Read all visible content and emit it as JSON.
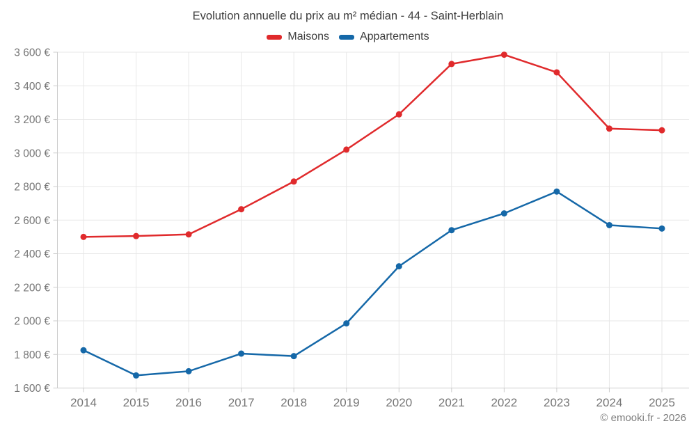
{
  "chart_data": {
    "type": "line",
    "title": "Evolution annuelle du prix au m² médian - 44 - Saint-Herblain",
    "categories": [
      "2014",
      "2015",
      "2016",
      "2017",
      "2018",
      "2019",
      "2020",
      "2021",
      "2022",
      "2023",
      "2024",
      "2025"
    ],
    "series": [
      {
        "name": "Maisons",
        "color": "#e02a2c",
        "values": [
          2500,
          2505,
          2515,
          2665,
          2830,
          3020,
          3230,
          3530,
          3585,
          3480,
          3145,
          3135
        ]
      },
      {
        "name": "Appartements",
        "color": "#1568a8",
        "values": [
          1825,
          1675,
          1700,
          1805,
          1790,
          1985,
          2325,
          2540,
          2640,
          2770,
          2570,
          2550
        ]
      }
    ],
    "ylim": [
      1600,
      3600
    ],
    "ytick_step": 200,
    "ytick_labels": [
      "1 600 €",
      "1 800 €",
      "2 000 €",
      "2 200 €",
      "2 400 €",
      "2 600 €",
      "2 800 €",
      "3 000 €",
      "3 200 €",
      "3 400 €",
      "3 600 €"
    ],
    "xlabel": "",
    "ylabel": "",
    "grid": true,
    "legend_position": "top"
  },
  "footer": {
    "credit": "© emooki.fr - 2026"
  },
  "colors": {
    "maisons": "#e02a2c",
    "appartements": "#1568a8",
    "gridline": "#e7e7e7",
    "axis_line": "#cccccc",
    "tick_label": "#767676",
    "title_text": "#3d3d3d"
  }
}
